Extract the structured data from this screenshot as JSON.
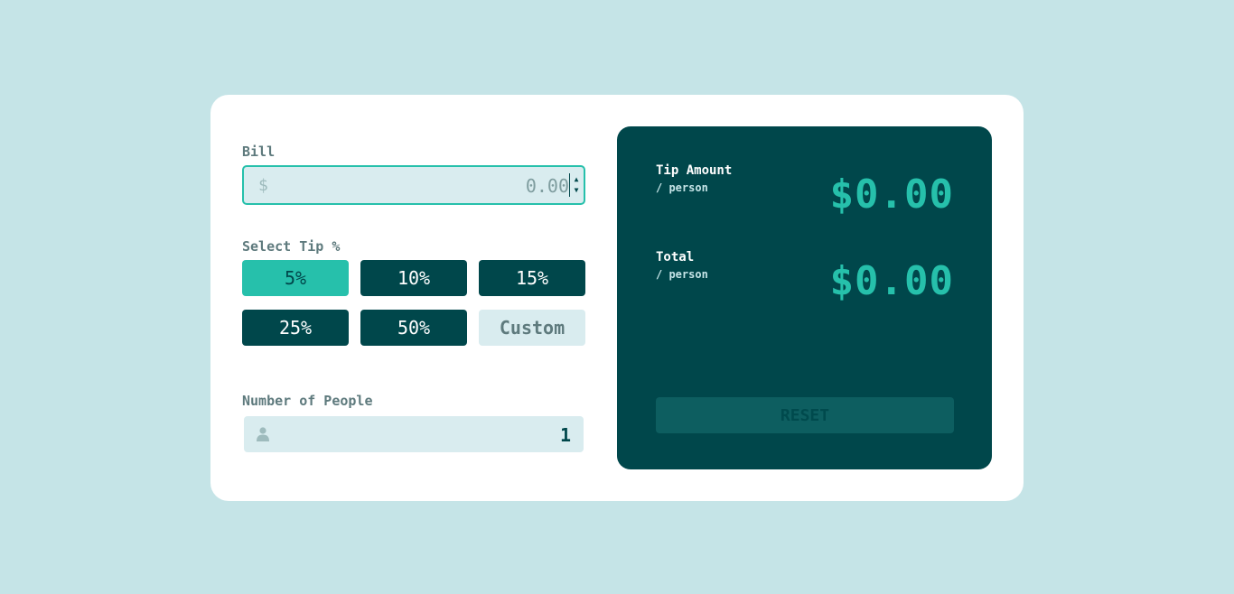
{
  "bill": {
    "label": "Bill",
    "currency_symbol": "$",
    "value": "0.00"
  },
  "tip": {
    "label": "Select Tip %",
    "options": [
      "5%",
      "10%",
      "15%",
      "25%",
      "50%"
    ],
    "custom_label": "Custom",
    "selected": "5%"
  },
  "people": {
    "label": "Number of People",
    "value": "1",
    "icon": "person-icon"
  },
  "results": {
    "tip_amount_title": "Tip Amount",
    "tip_amount_sub": "/ person",
    "tip_amount_value": "$0.00",
    "total_title": "Total",
    "total_sub": "/ person",
    "total_value": "$0.00",
    "reset_label": "RESET"
  },
  "colors": {
    "background": "#c5e4e7",
    "accent": "#26c0ab",
    "dark": "#00474b"
  }
}
